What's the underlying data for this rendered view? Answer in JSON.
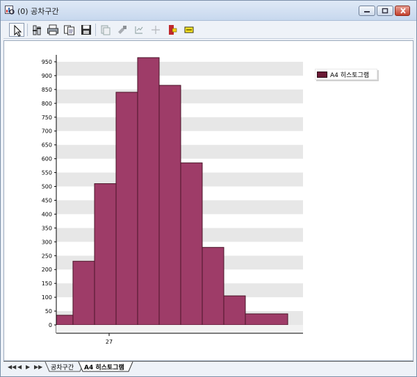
{
  "window": {
    "title": "(0) 공차구간"
  },
  "toolbar": {
    "buttons": [
      {
        "name": "pointer-tool-button",
        "icon": "cursor-arrow-icon"
      },
      {
        "name": "properties-button",
        "icon": "properties-icon"
      },
      {
        "name": "print-button",
        "icon": "printer-icon"
      },
      {
        "name": "copy-button",
        "icon": "copy-icon"
      },
      {
        "name": "save-button",
        "icon": "floppy-disk-icon"
      },
      {
        "name": "graph-options-button",
        "icon": "graph-options-icon"
      },
      {
        "name": "brush-button",
        "icon": "brush-icon"
      },
      {
        "name": "scale-button",
        "icon": "scale-icon"
      },
      {
        "name": "crosshair-button",
        "icon": "crosshair-icon"
      },
      {
        "name": "annotate-button",
        "icon": "annotate-icon"
      },
      {
        "name": "label-button",
        "icon": "label-icon"
      }
    ]
  },
  "legend": {
    "items": [
      "A4 히스토그램"
    ],
    "color": "#6b1a35"
  },
  "sheet_tabs": [
    "공차구간",
    "A4 히스토그램"
  ],
  "colors": {
    "bar_fill": "#9e3c68",
    "bar_stroke": "#4a1428",
    "band": "#e7e7e7"
  },
  "chart_data": {
    "type": "bar",
    "title": "",
    "xlabel": "",
    "ylabel": "",
    "ylim": [
      0,
      975
    ],
    "yticks": [
      0,
      50,
      100,
      150,
      200,
      250,
      300,
      350,
      400,
      450,
      500,
      550,
      600,
      650,
      700,
      750,
      800,
      850,
      900,
      950
    ],
    "xtick_labels": [
      "27"
    ],
    "grid": "alternating horizontal bands",
    "legend_position": "top-right",
    "series": [
      {
        "name": "A4 히스토그램",
        "values": [
          35,
          230,
          510,
          840,
          965,
          865,
          585,
          280,
          105,
          40
        ]
      }
    ]
  }
}
